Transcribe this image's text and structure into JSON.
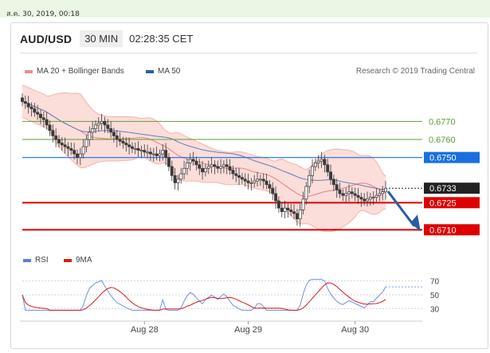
{
  "timestamp": "ส.ค. 30, 2019, 00:18",
  "header": {
    "pair": "AUD/USD",
    "timeframe": "30 MIN",
    "time": "02:28:35 CET"
  },
  "legend": [
    {
      "label": "MA 20 + Bollinger Bands",
      "color": "#f08a8a"
    },
    {
      "label": "MA 50",
      "color": "#2b5f9e"
    }
  ],
  "credit": "Research © 2019 Trading Central",
  "rsi_legend": [
    {
      "label": "RSI",
      "color": "#5b7fd6"
    },
    {
      "label": "9MA",
      "color": "#d81c1c"
    }
  ],
  "chart_data": {
    "type": "candlestick",
    "ylim": [
      0.67,
      0.679
    ],
    "x_labels": [
      "Aug 28",
      "Aug 29",
      "Aug 30"
    ],
    "levels": [
      {
        "value": "0.6770",
        "kind": "target",
        "color": "#5ca03a"
      },
      {
        "value": "0.6760",
        "kind": "target",
        "color": "#5ca03a"
      },
      {
        "value": "0.6750",
        "kind": "pivot",
        "color": "#1a6fe0"
      },
      {
        "value": "0.6733",
        "kind": "last",
        "color": "#222222"
      },
      {
        "value": "0.6725",
        "kind": "support",
        "color": "#e00000"
      },
      {
        "value": "0.6710",
        "kind": "support",
        "color": "#e00000"
      }
    ],
    "rsi_ticks": [
      70,
      50,
      30
    ],
    "close": [
      0.6781,
      0.678,
      0.6778,
      0.6777,
      0.6775,
      0.6774,
      0.6772,
      0.6771,
      0.6768,
      0.6765,
      0.6762,
      0.676,
      0.6758,
      0.6757,
      0.6756,
      0.6755,
      0.6754,
      0.6752,
      0.675,
      0.6752,
      0.6756,
      0.676,
      0.6764,
      0.6766,
      0.6768,
      0.6769,
      0.677,
      0.6768,
      0.6766,
      0.6764,
      0.6762,
      0.676,
      0.6759,
      0.6758,
      0.6757,
      0.6756,
      0.6755,
      0.6755,
      0.6754,
      0.6754,
      0.6753,
      0.6753,
      0.6752,
      0.6752,
      0.6751,
      0.6752,
      0.6754,
      0.675,
      0.6745,
      0.674,
      0.6736,
      0.6738,
      0.6741,
      0.6744,
      0.6747,
      0.6749,
      0.6748,
      0.6746,
      0.6744,
      0.6742,
      0.6744,
      0.6745,
      0.6746,
      0.6745,
      0.6744,
      0.6745,
      0.6746,
      0.6745,
      0.6743,
      0.6741,
      0.674,
      0.6739,
      0.6738,
      0.6737,
      0.6736,
      0.6736,
      0.6737,
      0.6738,
      0.6738,
      0.6737,
      0.6735,
      0.6733,
      0.673,
      0.6726,
      0.6722,
      0.672,
      0.6722,
      0.6721,
      0.672,
      0.6719,
      0.6716,
      0.6721,
      0.6727,
      0.6734,
      0.674,
      0.6745,
      0.6747,
      0.6748,
      0.6749,
      0.6746,
      0.6742,
      0.6738,
      0.6735,
      0.6732,
      0.673,
      0.6729,
      0.673,
      0.6731,
      0.673,
      0.6729,
      0.6728,
      0.6727,
      0.6726,
      0.6727,
      0.6728,
      0.6728,
      0.6729,
      0.673,
      0.6731,
      0.6733
    ]
  }
}
